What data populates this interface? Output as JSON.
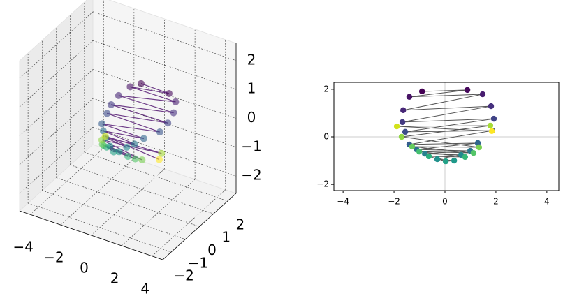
{
  "chart_data": [
    {
      "type": "scatter3d",
      "x": [
        -0.9,
        0.88,
        -1.4,
        1.48,
        -1.64,
        1.81,
        -1.67,
        1.92,
        -1.56,
        1.86,
        -1.4,
        1.29,
        -1.12,
        0.99,
        -0.79,
        0.63,
        -0.3,
        0.36,
        0.03,
        -0.63,
        0.79,
        -1.01,
        1.12,
        -1.29,
        1.34,
        -1.7,
        1.78,
        -1.89,
        1.84
      ],
      "y": [
        1.91,
        1.97,
        1.68,
        1.79,
        1.12,
        1.29,
        0.62,
        0.76,
        0.21,
        0.26,
        -0.32,
        -0.26,
        -0.53,
        -0.59,
        -0.71,
        -0.76,
        -0.94,
        -1.0,
        -1.03,
        -0.82,
        -0.85,
        -0.62,
        -0.68,
        -0.41,
        -0.44,
        0,
        0.47,
        0.44,
        0.24
      ],
      "z": [
        0.5,
        0.45,
        0.4,
        0.35,
        0.3,
        0.25,
        0.2,
        0.15,
        0.1,
        0.05,
        0,
        -0.05,
        -0.1,
        -0.15,
        -0.2,
        -0.25,
        -0.3,
        -0.35,
        -0.4,
        -0.45,
        -0.5,
        -0.55,
        -0.6,
        -0.65,
        -0.7,
        -0.75,
        -0.8,
        -0.85,
        -0.9
      ],
      "colors": [
        "#440154",
        "#46085c",
        "#471365",
        "#481d6f",
        "#472777",
        "#46307e",
        "#433a83",
        "#404387",
        "#3d4c8a",
        "#39558c",
        "#355e8d",
        "#31668e",
        "#2d6f8e",
        "#2a778e",
        "#27808e",
        "#23888e",
        "#21918c",
        "#1f998a",
        "#22a187",
        "#2ab07f",
        "#35b779",
        "#44bf70",
        "#54c568",
        "#65cb5e",
        "#7ad151",
        "#90d743",
        "#a5db36",
        "#d2e21b",
        "#fde725"
      ],
      "line_color": "#4b0c6b",
      "xlim": [
        -4.7,
        4.7
      ],
      "ylim": [
        -2.6,
        2.6
      ],
      "zlim": [
        -2.6,
        2.6
      ],
      "xticks": [
        {
          "value": -4,
          "label": "−4"
        },
        {
          "value": -2,
          "label": "−2"
        },
        0,
        2,
        4
      ],
      "yticks": [
        {
          "value": -2,
          "label": "−2"
        },
        {
          "value": -1,
          "label": "−1"
        },
        0,
        1,
        2
      ],
      "zticks": [
        {
          "value": -2,
          "label": "−2"
        },
        {
          "value": -1,
          "label": "−1"
        },
        0,
        1,
        2
      ],
      "grid": true
    },
    {
      "type": "scatter",
      "x": [
        -0.9,
        0.88,
        -1.4,
        1.48,
        -1.64,
        1.81,
        -1.67,
        1.92,
        -1.56,
        1.86,
        -1.4,
        1.29,
        -1.12,
        0.99,
        -0.79,
        0.63,
        -0.3,
        0.36,
        0.03,
        -0.63,
        0.79,
        -1.01,
        1.12,
        -1.29,
        1.34,
        -1.7,
        1.78,
        -1.89,
        1.84
      ],
      "y": [
        1.91,
        1.97,
        1.68,
        1.79,
        1.12,
        1.29,
        0.62,
        0.76,
        0.21,
        0.26,
        -0.32,
        -0.26,
        -0.53,
        -0.59,
        -0.71,
        -0.76,
        -0.94,
        -1.0,
        -1.03,
        -0.82,
        -0.85,
        -0.62,
        -0.68,
        -0.41,
        -0.44,
        0,
        0.47,
        0.44,
        0.24
      ],
      "colors": [
        "#440154",
        "#46085c",
        "#471365",
        "#481d6f",
        "#472777",
        "#46307e",
        "#433a83",
        "#404387",
        "#3d4c8a",
        "#39558c",
        "#355e8d",
        "#31668e",
        "#2d6f8e",
        "#2a778e",
        "#27808e",
        "#23888e",
        "#21918c",
        "#1f998a",
        "#22a187",
        "#2ab07f",
        "#35b779",
        "#44bf70",
        "#54c568",
        "#65cb5e",
        "#7ad151",
        "#90d743",
        "#a5db36",
        "#d2e21b",
        "#fde725"
      ],
      "line_color": "#555555",
      "connect": true,
      "zero_lines": true,
      "xlim": [
        -4.36,
        4.47
      ],
      "ylim": [
        -2.26,
        2.29
      ],
      "xticks": [
        {
          "value": -4,
          "label": "−4"
        },
        {
          "value": -2,
          "label": "−2"
        },
        0,
        2,
        4
      ],
      "yticks": [
        {
          "value": -2,
          "label": "−2"
        },
        0,
        2
      ]
    }
  ]
}
